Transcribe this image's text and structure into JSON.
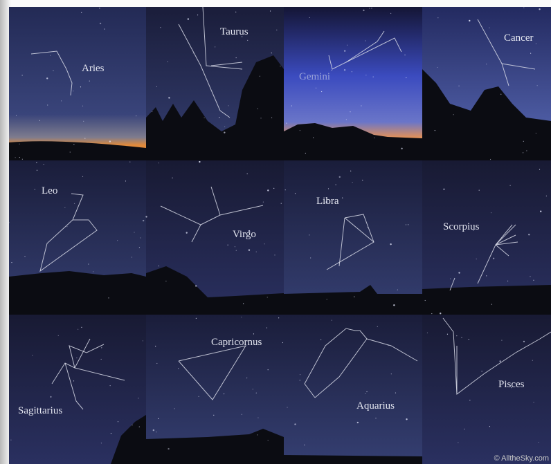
{
  "panels": [
    {
      "label": "Aries"
    },
    {
      "label": "Taurus"
    },
    {
      "label": "Gemini"
    },
    {
      "label": "Cancer"
    },
    {
      "label": "Leo"
    },
    {
      "label": "Virgo"
    },
    {
      "label": "Libra"
    },
    {
      "label": "Scorpius"
    },
    {
      "label": "Sagittarius"
    },
    {
      "label": "Capricornus"
    },
    {
      "label": "Aquarius"
    },
    {
      "label": "Pisces"
    }
  ],
  "credit": "© AlltheSky.com"
}
